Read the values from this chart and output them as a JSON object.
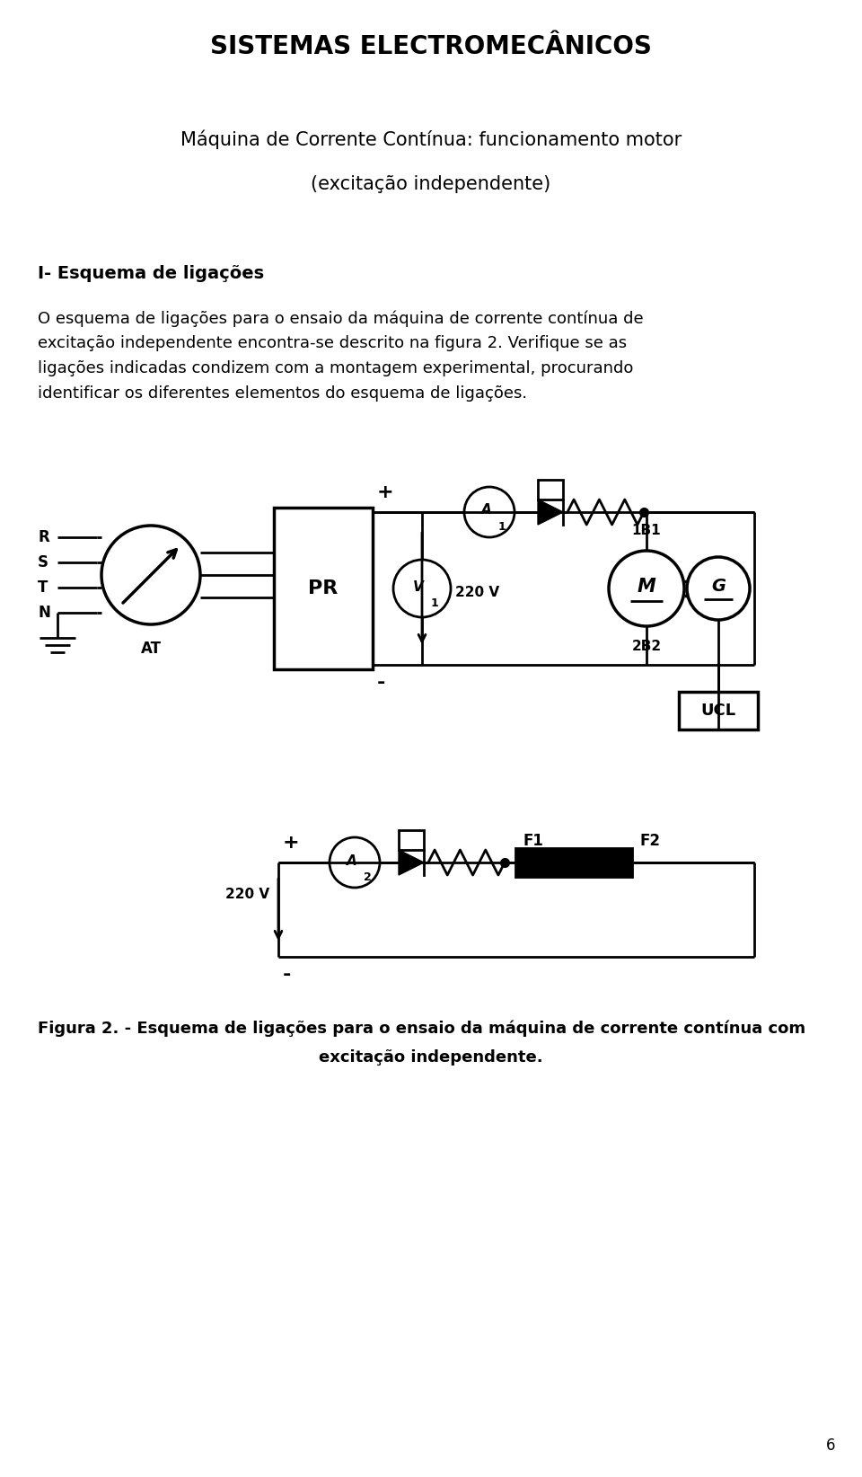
{
  "title": "SISTEMAS ELECTROMECÂNICOS",
  "subtitle1": "Máquina de Corrente Contínua: funcionamento motor",
  "subtitle2": "(excitação independente)",
  "section_title": "I- Esquema de ligações",
  "body_text_line1": "O esquema de ligações para o ensaio da máquina de corrente contínua de",
  "body_text_line2": "excitação independente encontra-se descrito na figura 2. Verifique se as",
  "body_text_line3": "ligações indicadas condizem com a montagem experimental, procurando",
  "body_text_line4": "identificar os diferentes elementos do esquema de ligações.",
  "caption_line1": "Figura 2. - Esquema de ligações para o ensaio da máquina de corrente contínua com",
  "caption_line2": "excitação independente.",
  "page_number": "6",
  "bg_color": "#ffffff",
  "fg_color": "#000000"
}
